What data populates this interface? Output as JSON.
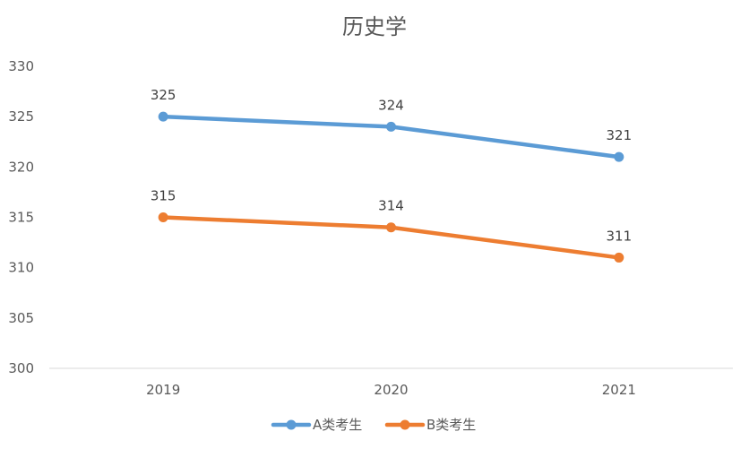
{
  "chart_data": {
    "type": "line",
    "title": "历史学",
    "categories": [
      "2019",
      "2020",
      "2021"
    ],
    "series": [
      {
        "name": "A类考生",
        "values": [
          325,
          324,
          321
        ],
        "color": "#5B9BD5"
      },
      {
        "name": "B类考生",
        "values": [
          315,
          314,
          311
        ],
        "color": "#ED7D31"
      }
    ],
    "ylim": [
      300,
      330
    ],
    "yticks": [
      330,
      325,
      320,
      315,
      310,
      305,
      300
    ],
    "xlabel": "",
    "ylabel": "",
    "grid": false,
    "legend": "bottom-center",
    "data_labels": true
  }
}
